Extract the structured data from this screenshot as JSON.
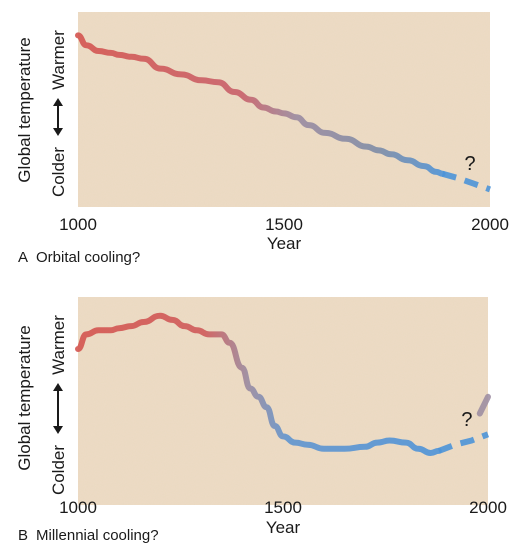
{
  "colors": {
    "panel_bg": "#ecdcc6",
    "warm": "#d4544f",
    "mid": "#9a8aa0",
    "cool": "#4d93d8",
    "dashed": "#4d93d8"
  },
  "chart_data": [
    {
      "type": "line",
      "panel_label": "A",
      "caption": "Orbital cooling?",
      "xlabel": "Year",
      "ylabel": "Global temperature",
      "y_high_label": "Warmer",
      "y_low_label": "Colder",
      "xlim": [
        1000,
        2000
      ],
      "ylim": [
        0,
        1
      ],
      "x_ticks": [
        "1000",
        "1500",
        "2000"
      ],
      "y_ticks_shown": false,
      "grid": false,
      "annotation": "?",
      "series": [
        {
          "x": [
            1000,
            1020,
            1050,
            1080,
            1100,
            1130,
            1160,
            1200,
            1250,
            1300,
            1340,
            1380,
            1420,
            1450,
            1480,
            1500,
            1530,
            1560,
            1600,
            1650,
            1700,
            1730,
            1760,
            1800,
            1840,
            1870,
            1885
          ],
          "y": [
            0.88,
            0.83,
            0.8,
            0.79,
            0.78,
            0.77,
            0.76,
            0.71,
            0.68,
            0.65,
            0.64,
            0.59,
            0.55,
            0.51,
            0.49,
            0.48,
            0.46,
            0.42,
            0.38,
            0.35,
            0.31,
            0.29,
            0.27,
            0.24,
            0.21,
            0.18,
            0.17
          ]
        }
      ],
      "projection": {
        "style": "dashed",
        "x": [
          1885,
          1920,
          1960,
          2000
        ],
        "y": [
          0.17,
          0.15,
          0.12,
          0.09
        ]
      }
    },
    {
      "type": "line",
      "panel_label": "B",
      "caption": "Millennial cooling?",
      "xlabel": "Year",
      "ylabel": "Global temperature",
      "y_high_label": "Warmer",
      "y_low_label": "Colder",
      "xlim": [
        1000,
        2000
      ],
      "ylim": [
        0,
        1
      ],
      "x_ticks": [
        "1000",
        "1500",
        "2000"
      ],
      "y_ticks_shown": false,
      "grid": false,
      "annotation": "?",
      "series": [
        {
          "x": [
            1000,
            1020,
            1050,
            1080,
            1100,
            1130,
            1160,
            1200,
            1230,
            1260,
            1290,
            1320,
            1350,
            1370,
            1400,
            1420,
            1440,
            1460,
            1480,
            1500,
            1530,
            1560,
            1600,
            1650,
            1700,
            1730,
            1760,
            1800,
            1830,
            1860,
            1880
          ],
          "y": [
            0.75,
            0.82,
            0.84,
            0.84,
            0.85,
            0.86,
            0.88,
            0.91,
            0.89,
            0.86,
            0.84,
            0.82,
            0.82,
            0.78,
            0.66,
            0.56,
            0.52,
            0.47,
            0.38,
            0.33,
            0.3,
            0.29,
            0.27,
            0.27,
            0.28,
            0.3,
            0.31,
            0.3,
            0.27,
            0.25,
            0.26
          ]
        }
      ],
      "projection": {
        "style": "dashed",
        "x": [
          1880,
          1920,
          1960,
          2000
        ],
        "y": [
          0.26,
          0.29,
          0.31,
          0.34
        ]
      },
      "projection_rise": {
        "style": "solid",
        "x": [
          1980,
          2000
        ],
        "y": [
          0.44,
          0.52
        ]
      }
    }
  ]
}
